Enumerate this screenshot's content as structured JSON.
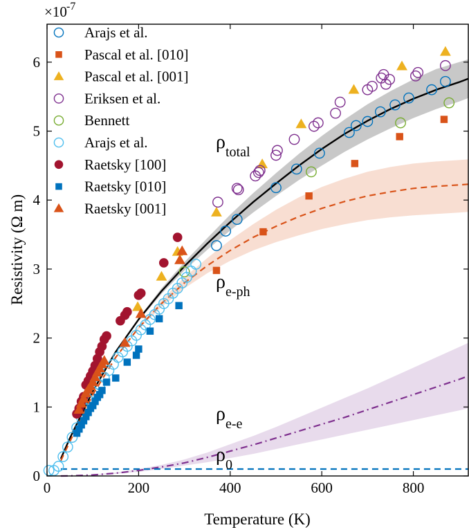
{
  "chart_data": {
    "type": "scatter",
    "xlabel": "Temperature (K)",
    "ylabel": "Resistivity (Ω m)",
    "y_multiplier_base": "×10",
    "y_multiplier_exponent": "-7",
    "xlim": [
      0,
      920
    ],
    "ylim": [
      0,
      6.55
    ],
    "x_ticks": [
      0,
      200,
      400,
      600,
      800
    ],
    "y_ticks": [
      0,
      1,
      2,
      3,
      4,
      5,
      6
    ],
    "x_tick_labels": [
      "0",
      "200",
      "400",
      "600",
      "800"
    ],
    "y_tick_labels": [
      "0",
      "1",
      "2",
      "3",
      "4",
      "5",
      "6"
    ],
    "grid": false,
    "legend_position": "top-left",
    "series": [
      {
        "name": "Arajs et al.",
        "marker": "circle-open",
        "color": "#0072BD",
        "points": [
          [
            370,
            3.34
          ],
          [
            390,
            3.55
          ],
          [
            415,
            3.72
          ],
          [
            500,
            4.18
          ],
          [
            545,
            4.45
          ],
          [
            595,
            4.68
          ],
          [
            660,
            4.98
          ],
          [
            675,
            5.08
          ],
          [
            700,
            5.14
          ],
          [
            728,
            5.28
          ],
          [
            760,
            5.38
          ],
          [
            790,
            5.48
          ],
          [
            840,
            5.6
          ],
          [
            870,
            5.72
          ]
        ]
      },
      {
        "name": "Pascal et al. [010]",
        "marker": "square-filled",
        "color": "#D95319",
        "points": [
          [
            370,
            2.98
          ],
          [
            472,
            3.54
          ],
          [
            572,
            4.06
          ],
          [
            672,
            4.53
          ],
          [
            770,
            4.92
          ],
          [
            867,
            5.17
          ]
        ]
      },
      {
        "name": "Pascal et al. [001]",
        "marker": "triangle-filled",
        "color": "#EDB120",
        "points": [
          [
            198,
            2.45
          ],
          [
            250,
            2.89
          ],
          [
            285,
            3.25
          ],
          [
            370,
            3.82
          ],
          [
            470,
            4.52
          ],
          [
            555,
            5.1
          ],
          [
            670,
            5.6
          ],
          [
            775,
            5.94
          ],
          [
            870,
            6.15
          ]
        ]
      },
      {
        "name": "Eriksen et al.",
        "marker": "circle-open",
        "color": "#7E2F8E",
        "points": [
          [
            373,
            3.97
          ],
          [
            415,
            4.17
          ],
          [
            418,
            4.15
          ],
          [
            455,
            4.35
          ],
          [
            462,
            4.4
          ],
          [
            465,
            4.43
          ],
          [
            500,
            4.65
          ],
          [
            503,
            4.72
          ],
          [
            540,
            4.88
          ],
          [
            583,
            5.07
          ],
          [
            592,
            5.12
          ],
          [
            630,
            5.26
          ],
          [
            640,
            5.42
          ],
          [
            700,
            5.6
          ],
          [
            710,
            5.65
          ],
          [
            730,
            5.77
          ],
          [
            735,
            5.82
          ],
          [
            740,
            5.68
          ],
          [
            748,
            5.75
          ],
          [
            805,
            5.8
          ],
          [
            810,
            5.85
          ],
          [
            870,
            5.95
          ]
        ]
      },
      {
        "name": "Bennett",
        "marker": "circle-open",
        "color": "#77AC30",
        "points": [
          [
            300,
            2.96
          ],
          [
            577,
            4.41
          ],
          [
            772,
            5.12
          ],
          [
            878,
            5.41
          ]
        ]
      },
      {
        "name": "Arajs et al.",
        "marker": "circle-open",
        "color": "#4DBEEE",
        "points": [
          [
            4,
            0.08
          ],
          [
            15,
            0.08
          ],
          [
            25,
            0.14
          ],
          [
            35,
            0.28
          ],
          [
            45,
            0.42
          ],
          [
            55,
            0.56
          ],
          [
            65,
            0.7
          ],
          [
            75,
            0.85
          ],
          [
            85,
            0.98
          ],
          [
            95,
            1.08
          ],
          [
            105,
            1.2
          ],
          [
            115,
            1.32
          ],
          [
            125,
            1.43
          ],
          [
            135,
            1.53
          ],
          [
            145,
            1.62
          ],
          [
            155,
            1.72
          ],
          [
            165,
            1.8
          ],
          [
            175,
            1.88
          ],
          [
            185,
            1.96
          ],
          [
            195,
            2.04
          ],
          [
            205,
            2.12
          ],
          [
            215,
            2.19
          ],
          [
            225,
            2.27
          ],
          [
            235,
            2.34
          ],
          [
            245,
            2.42
          ],
          [
            255,
            2.5
          ],
          [
            265,
            2.57
          ],
          [
            275,
            2.65
          ],
          [
            285,
            2.72
          ],
          [
            295,
            2.8
          ],
          [
            305,
            2.88
          ],
          [
            315,
            2.97
          ],
          [
            325,
            3.07
          ]
        ]
      },
      {
        "name": "Raetsky [100]",
        "marker": "circle-filled",
        "color": "#A2142F",
        "points": [
          [
            65,
            0.9
          ],
          [
            70,
            0.98
          ],
          [
            75,
            1.08
          ],
          [
            80,
            1.15
          ],
          [
            85,
            1.32
          ],
          [
            90,
            1.38
          ],
          [
            95,
            1.45
          ],
          [
            100,
            1.52
          ],
          [
            105,
            1.6
          ],
          [
            110,
            1.7
          ],
          [
            115,
            1.8
          ],
          [
            120,
            1.88
          ],
          [
            125,
            1.98
          ],
          [
            130,
            2.03
          ],
          [
            160,
            2.25
          ],
          [
            170,
            2.33
          ],
          [
            175,
            2.38
          ],
          [
            200,
            2.62
          ],
          [
            205,
            2.65
          ],
          [
            255,
            3.09
          ],
          [
            285,
            3.46
          ]
        ]
      },
      {
        "name": "Raetsky [010]",
        "marker": "square-filled",
        "color": "#0072BD",
        "points": [
          [
            65,
            0.62
          ],
          [
            70,
            0.68
          ],
          [
            75,
            0.74
          ],
          [
            80,
            0.8
          ],
          [
            85,
            0.86
          ],
          [
            90,
            0.92
          ],
          [
            95,
            0.98
          ],
          [
            100,
            1.02
          ],
          [
            105,
            1.08
          ],
          [
            110,
            1.14
          ],
          [
            115,
            1.18
          ],
          [
            120,
            1.24
          ],
          [
            130,
            1.36
          ],
          [
            150,
            1.42
          ],
          [
            175,
            1.65
          ],
          [
            195,
            1.75
          ],
          [
            200,
            1.84
          ],
          [
            225,
            2.1
          ],
          [
            245,
            2.28
          ],
          [
            288,
            2.47
          ]
        ]
      },
      {
        "name": "Raetsky [001]",
        "marker": "triangle-filled",
        "color": "#D95319",
        "points": [
          [
            70,
            0.96
          ],
          [
            75,
            1.05
          ],
          [
            80,
            1.12
          ],
          [
            85,
            1.2
          ],
          [
            90,
            1.25
          ],
          [
            95,
            1.3
          ],
          [
            100,
            1.36
          ],
          [
            105,
            1.43
          ],
          [
            110,
            1.5
          ],
          [
            115,
            1.56
          ],
          [
            120,
            1.62
          ],
          [
            125,
            1.67
          ],
          [
            170,
            1.93
          ],
          [
            205,
            2.35
          ],
          [
            290,
            3.13
          ],
          [
            295,
            3.26
          ]
        ]
      }
    ],
    "curves": [
      {
        "label_symbol": "ρ",
        "label_sub": "total",
        "style": "solid",
        "color": "#000000",
        "band_color": "#9a9a9a",
        "x": [
          30,
          50,
          100,
          150,
          200,
          250,
          300,
          350,
          400,
          450,
          500,
          550,
          600,
          650,
          700,
          750,
          800,
          850,
          900,
          920
        ],
        "y": [
          0.25,
          0.55,
          1.23,
          1.8,
          2.27,
          2.68,
          3.04,
          3.37,
          3.68,
          3.97,
          4.24,
          4.5,
          4.74,
          4.96,
          5.15,
          5.32,
          5.47,
          5.6,
          5.71,
          5.76
        ],
        "band_lower": [
          0.25,
          0.55,
          1.23,
          1.8,
          2.25,
          2.64,
          2.98,
          3.28,
          3.56,
          3.82,
          4.06,
          4.29,
          4.5,
          4.7,
          4.88,
          5.04,
          5.19,
          5.32,
          5.43,
          5.48
        ],
        "band_upper": [
          0.25,
          0.55,
          1.23,
          1.8,
          2.29,
          2.72,
          3.1,
          3.45,
          3.79,
          4.1,
          4.39,
          4.67,
          4.93,
          5.17,
          5.39,
          5.58,
          5.75,
          5.9,
          6.0,
          6.04
        ]
      },
      {
        "label_symbol": "ρ",
        "label_sub": "e-ph",
        "style": "dashed",
        "color": "#D95319",
        "band_color": "#f3c3ad",
        "x": [
          30,
          50,
          100,
          150,
          200,
          250,
          300,
          350,
          400,
          450,
          500,
          550,
          600,
          650,
          700,
          750,
          800,
          850,
          900,
          920
        ],
        "y": [
          0.22,
          0.5,
          1.18,
          1.72,
          2.15,
          2.5,
          2.8,
          3.05,
          3.27,
          3.46,
          3.62,
          3.76,
          3.88,
          3.98,
          4.06,
          4.12,
          4.17,
          4.2,
          4.22,
          4.23
        ],
        "band_lower": [
          0.22,
          0.5,
          1.18,
          1.72,
          2.13,
          2.45,
          2.72,
          2.94,
          3.12,
          3.27,
          3.39,
          3.49,
          3.58,
          3.65,
          3.71,
          3.75,
          3.78,
          3.8,
          3.82,
          3.83
        ],
        "band_upper": [
          0.22,
          0.5,
          1.18,
          1.72,
          2.17,
          2.55,
          2.88,
          3.16,
          3.42,
          3.65,
          3.86,
          4.04,
          4.19,
          4.31,
          4.41,
          4.48,
          4.53,
          4.56,
          4.58,
          4.59
        ]
      },
      {
        "label_symbol": "ρ",
        "label_sub": "e-e",
        "style": "dashdot",
        "color": "#7E2F8E",
        "band_color": "#d6bddd",
        "x": [
          30,
          50,
          100,
          150,
          200,
          250,
          300,
          350,
          400,
          450,
          500,
          550,
          600,
          650,
          700,
          750,
          800,
          850,
          900,
          920
        ],
        "y": [
          0.0,
          0.002,
          0.015,
          0.04,
          0.08,
          0.13,
          0.19,
          0.27,
          0.36,
          0.45,
          0.55,
          0.65,
          0.75,
          0.85,
          0.96,
          1.07,
          1.18,
          1.29,
          1.4,
          1.45
        ],
        "band_lower": [
          0.0,
          0.001,
          0.01,
          0.03,
          0.06,
          0.1,
          0.15,
          0.2,
          0.26,
          0.32,
          0.39,
          0.46,
          0.53,
          0.6,
          0.67,
          0.74,
          0.81,
          0.88,
          0.95,
          0.98
        ],
        "band_upper": [
          0.0,
          0.003,
          0.02,
          0.05,
          0.1,
          0.16,
          0.24,
          0.34,
          0.46,
          0.58,
          0.71,
          0.85,
          0.99,
          1.13,
          1.27,
          1.42,
          1.57,
          1.72,
          1.87,
          1.93
        ]
      },
      {
        "label_symbol": "ρ",
        "label_sub": "0",
        "style": "dashed",
        "color": "#0072BD",
        "x": [
          30,
          920
        ],
        "y": [
          0.1,
          0.1
        ]
      }
    ]
  }
}
